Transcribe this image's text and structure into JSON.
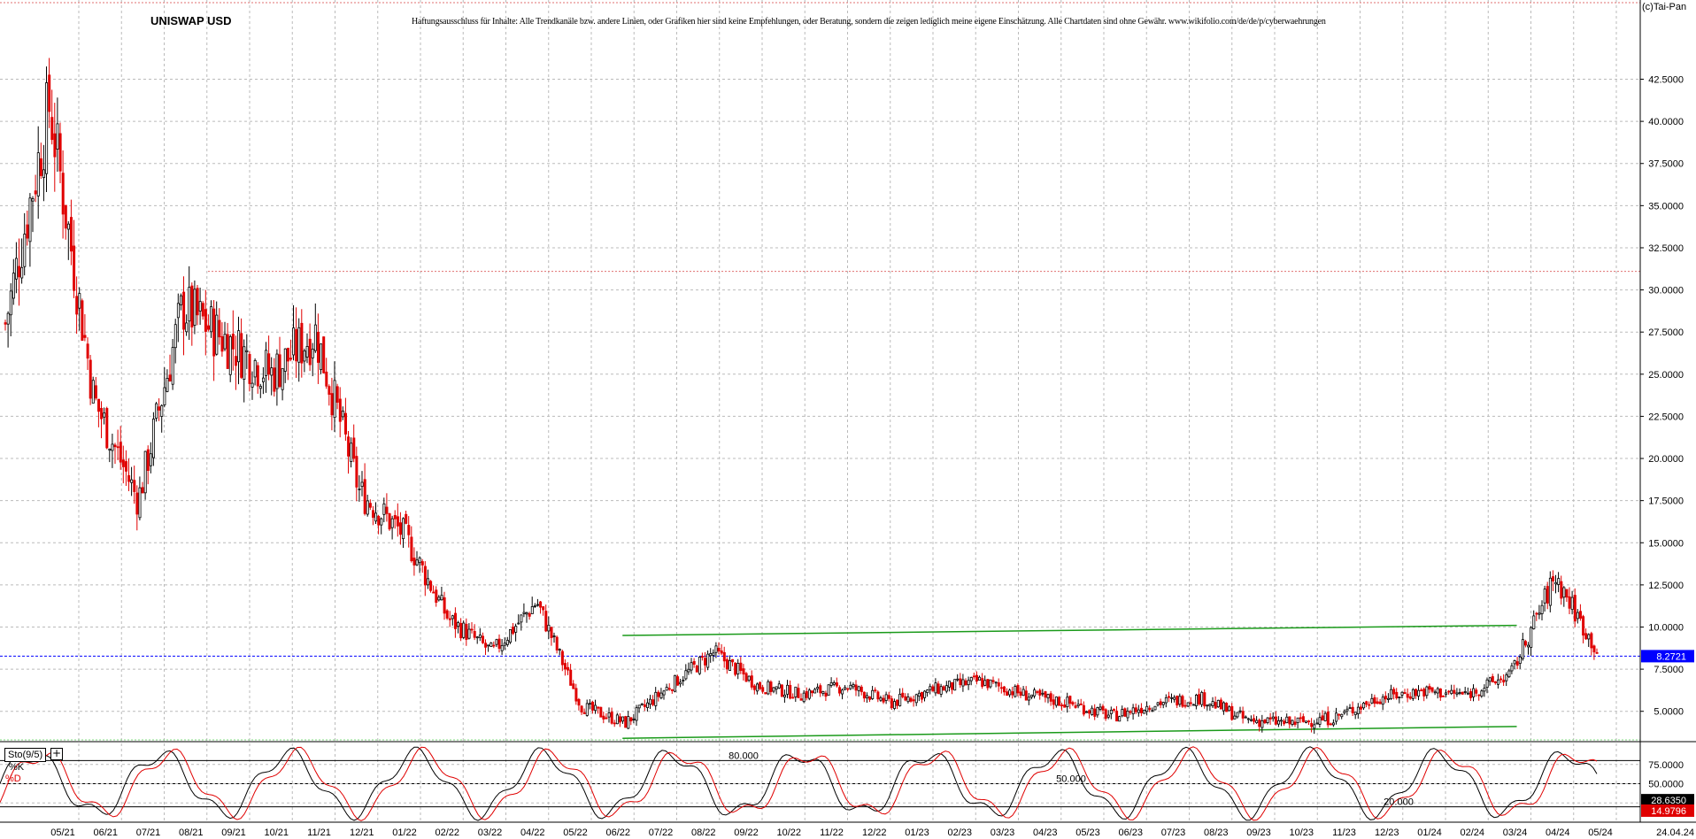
{
  "header": {
    "title": "UNISWAP USD",
    "disclaimer": "Haftungsausschluss für Inhalte: Alle Trendkanäle bzw. andere Linien, oder Grafiken hier sind keine Empfehlungen, oder Beratung, sondern die zeigen lediglich meine eigene Einschätzung. Alle Chartdaten sind ohne Gewähr.  www.wikifolio.com/de/de/p/cyberwaehrungen",
    "brand": "(c)Tai-Pan"
  },
  "indicator": {
    "name": "Sto(9/5)",
    "k_label": "%K",
    "d_label": "%D",
    "level_labels": [
      "80.000",
      "50.000",
      "20.000"
    ],
    "k_value": "28.6350",
    "d_value": "14.9796"
  },
  "colors": {
    "up": "#000000",
    "down": "#e00000",
    "trendline": "#1a9a1a",
    "current_price": "#0000ff",
    "resistance": "#e07070",
    "grid": "#bbbbbb"
  },
  "chart_data": [
    {
      "type": "candlestick",
      "title": "UNISWAP USD",
      "ylim": [
        3.2,
        47.2
      ],
      "y_ticks": [
        "5.0000",
        "7.5000",
        "10.0000",
        "12.5000",
        "15.0000",
        "17.5000",
        "20.0000",
        "22.5000",
        "25.0000",
        "27.5000",
        "30.0000",
        "32.5000",
        "35.0000",
        "37.5000",
        "40.0000",
        "42.5000"
      ],
      "x_ticks": [
        "05/21",
        "06/21",
        "07/21",
        "08/21",
        "09/21",
        "10/21",
        "11/21",
        "12/21",
        "01/22",
        "02/22",
        "03/22",
        "04/22",
        "05/22",
        "06/22",
        "07/22",
        "08/22",
        "09/22",
        "10/22",
        "11/22",
        "12/22",
        "01/23",
        "02/23",
        "03/23",
        "04/23",
        "05/23",
        "06/23",
        "07/23",
        "08/23",
        "09/23",
        "10/23",
        "11/23",
        "12/23",
        "01/24",
        "02/24",
        "03/24",
        "04/24",
        "05/24"
      ],
      "last_date": "24.04.24",
      "current_price": "8.2721",
      "current_price_value": 8.2721,
      "resistance_level": 31.1,
      "trendlines": [
        {
          "from": [
            "06/22",
            9.5
          ],
          "to": [
            "03/24",
            10.1
          ]
        },
        {
          "from": [
            "06/22",
            3.4
          ],
          "to": [
            "03/24",
            4.1
          ]
        }
      ],
      "series": [
        {
          "name": "close",
          "x": [
            "04/21",
            "05/21",
            "06/21",
            "07/21",
            "08/21",
            "09/21",
            "10/21",
            "11/21",
            "12/21",
            "01/22",
            "02/22",
            "03/22",
            "04/22",
            "05/22",
            "06/22",
            "07/22",
            "08/22",
            "09/22",
            "10/22",
            "11/22",
            "12/22",
            "01/23",
            "02/23",
            "03/23",
            "04/23",
            "05/23",
            "06/23",
            "07/23",
            "08/23",
            "09/23",
            "10/23",
            "11/23",
            "12/23",
            "01/24",
            "02/24",
            "03/24",
            "04/24"
          ],
          "values": [
            28.0,
            41.0,
            23.5,
            17.5,
            29.0,
            27.0,
            25.0,
            27.5,
            18.0,
            15.5,
            10.5,
            8.5,
            11.5,
            5.3,
            4.3,
            6.5,
            8.5,
            6.5,
            6.0,
            6.5,
            5.5,
            6.3,
            6.8,
            6.0,
            5.5,
            4.7,
            5.5,
            5.8,
            4.5,
            4.3,
            4.6,
            5.8,
            6.2,
            6.0,
            7.2,
            13.0,
            8.3
          ]
        }
      ]
    },
    {
      "type": "line",
      "title": "Sto(9/5)",
      "ylim": [
        0,
        100
      ],
      "y_ticks": [
        "25.0000",
        "50.0000",
        "75.0000"
      ],
      "levels": [
        20,
        50,
        80
      ],
      "series": [
        {
          "name": "%K",
          "color": "#000000"
        },
        {
          "name": "%D",
          "color": "#e00000"
        }
      ]
    }
  ]
}
